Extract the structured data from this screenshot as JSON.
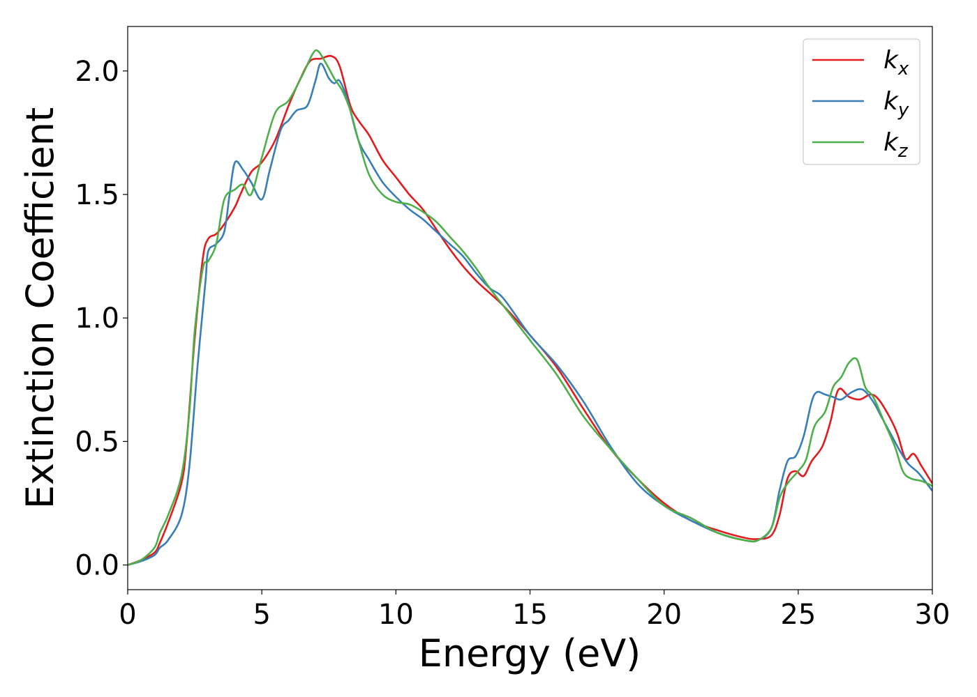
{
  "chart_data": {
    "type": "line",
    "xlabel": "Energy (eV)",
    "ylabel": "Extinction Coefficient",
    "xlim": [
      0,
      30
    ],
    "ylim": [
      -0.1,
      2.18
    ],
    "xticks": [
      0,
      5,
      10,
      15,
      20,
      25,
      30
    ],
    "xtick_labels": [
      "0",
      "5",
      "10",
      "15",
      "20",
      "25",
      "30"
    ],
    "yticks": [
      0.0,
      0.5,
      1.0,
      1.5,
      2.0
    ],
    "ytick_labels": [
      "0.0",
      "0.5",
      "1.0",
      "1.5",
      "2.0"
    ],
    "grid": false,
    "legend_position": "top-right",
    "series": [
      {
        "name": "k",
        "subscript": "x",
        "color": "#e41a1c",
        "x": [
          0,
          0.5,
          1.0,
          1.2,
          1.5,
          2.0,
          2.2,
          2.5,
          2.8,
          3.0,
          3.3,
          3.6,
          4.0,
          4.2,
          4.6,
          5.0,
          5.5,
          6.0,
          6.4,
          6.8,
          7.2,
          7.6,
          7.9,
          8.3,
          8.6,
          9.0,
          9.5,
          10.0,
          10.5,
          11.0,
          11.5,
          12.0,
          12.5,
          13.0,
          13.5,
          14.0,
          15.0,
          16.0,
          17.0,
          18.0,
          19.0,
          20.0,
          21.0,
          22.0,
          23.0,
          23.5,
          24.0,
          24.3,
          24.6,
          24.9,
          25.2,
          25.5,
          25.9,
          26.2,
          26.5,
          26.9,
          27.3,
          27.7,
          28.0,
          28.4,
          28.7,
          29.0,
          29.3,
          29.6,
          30.0
        ],
        "y": [
          0.0,
          0.02,
          0.05,
          0.09,
          0.17,
          0.33,
          0.5,
          0.92,
          1.24,
          1.32,
          1.34,
          1.38,
          1.45,
          1.5,
          1.59,
          1.63,
          1.72,
          1.86,
          1.96,
          2.04,
          2.05,
          2.06,
          2.02,
          1.86,
          1.8,
          1.74,
          1.64,
          1.57,
          1.5,
          1.44,
          1.36,
          1.28,
          1.21,
          1.15,
          1.1,
          1.05,
          0.93,
          0.8,
          0.63,
          0.47,
          0.35,
          0.25,
          0.18,
          0.14,
          0.11,
          0.105,
          0.12,
          0.2,
          0.35,
          0.38,
          0.36,
          0.42,
          0.48,
          0.58,
          0.71,
          0.68,
          0.67,
          0.69,
          0.67,
          0.6,
          0.53,
          0.43,
          0.45,
          0.4,
          0.33
        ]
      },
      {
        "name": "k",
        "subscript": "y",
        "color": "#377eb8",
        "x": [
          0,
          0.5,
          1.0,
          1.2,
          1.5,
          2.0,
          2.3,
          2.6,
          2.9,
          3.0,
          3.3,
          3.6,
          3.8,
          4.0,
          4.3,
          4.6,
          5.0,
          5.3,
          5.7,
          6.0,
          6.3,
          6.7,
          7.0,
          7.2,
          7.5,
          7.7,
          7.9,
          8.2,
          8.6,
          9.0,
          9.5,
          10.0,
          10.5,
          11.0,
          11.5,
          12.0,
          12.5,
          13.0,
          13.5,
          14.0,
          15.0,
          16.0,
          17.0,
          18.0,
          19.0,
          20.0,
          21.0,
          22.0,
          23.0,
          23.5,
          24.0,
          24.3,
          24.6,
          24.9,
          25.2,
          25.5,
          25.7,
          26.0,
          26.3,
          26.6,
          27.0,
          27.4,
          27.8,
          28.1,
          28.5,
          28.8,
          29.1,
          29.5,
          30.0
        ],
        "y": [
          0.0,
          0.015,
          0.04,
          0.07,
          0.1,
          0.2,
          0.4,
          0.8,
          1.15,
          1.27,
          1.3,
          1.35,
          1.5,
          1.63,
          1.6,
          1.55,
          1.48,
          1.6,
          1.76,
          1.8,
          1.84,
          1.86,
          1.96,
          2.03,
          1.97,
          1.95,
          1.96,
          1.88,
          1.72,
          1.64,
          1.55,
          1.49,
          1.44,
          1.4,
          1.35,
          1.3,
          1.25,
          1.18,
          1.12,
          1.08,
          0.93,
          0.81,
          0.66,
          0.48,
          0.33,
          0.24,
          0.18,
          0.13,
          0.1,
          0.1,
          0.15,
          0.3,
          0.42,
          0.44,
          0.52,
          0.66,
          0.7,
          0.69,
          0.68,
          0.67,
          0.7,
          0.71,
          0.66,
          0.6,
          0.52,
          0.46,
          0.41,
          0.37,
          0.3
        ]
      },
      {
        "name": "k",
        "subscript": "z",
        "color": "#4daf4a",
        "x": [
          0,
          0.5,
          1.0,
          1.2,
          1.5,
          2.0,
          2.3,
          2.5,
          2.8,
          3.0,
          3.3,
          3.6,
          4.0,
          4.3,
          4.6,
          5.0,
          5.5,
          6.0,
          6.5,
          6.9,
          7.1,
          7.4,
          7.7,
          8.0,
          8.3,
          8.6,
          9.0,
          9.5,
          10.0,
          10.5,
          11.0,
          11.5,
          12.0,
          12.5,
          13.0,
          13.5,
          14.0,
          15.0,
          16.0,
          17.0,
          18.0,
          19.0,
          20.0,
          21.0,
          22.0,
          23.0,
          23.5,
          24.0,
          24.3,
          24.6,
          25.0,
          25.3,
          25.6,
          26.0,
          26.3,
          26.6,
          26.9,
          27.2,
          27.5,
          27.8,
          28.2,
          28.6,
          28.9,
          29.2,
          29.6,
          30.0
        ],
        "y": [
          0.0,
          0.02,
          0.07,
          0.13,
          0.2,
          0.36,
          0.62,
          0.95,
          1.2,
          1.23,
          1.3,
          1.48,
          1.52,
          1.54,
          1.5,
          1.65,
          1.83,
          1.88,
          1.98,
          2.07,
          2.08,
          2.03,
          1.97,
          1.92,
          1.84,
          1.72,
          1.58,
          1.5,
          1.47,
          1.46,
          1.43,
          1.39,
          1.33,
          1.27,
          1.2,
          1.12,
          1.05,
          0.91,
          0.77,
          0.6,
          0.47,
          0.35,
          0.24,
          0.19,
          0.13,
          0.1,
          0.1,
          0.15,
          0.27,
          0.33,
          0.38,
          0.43,
          0.56,
          0.62,
          0.72,
          0.76,
          0.82,
          0.83,
          0.72,
          0.68,
          0.58,
          0.48,
          0.38,
          0.35,
          0.34,
          0.32
        ]
      }
    ]
  }
}
